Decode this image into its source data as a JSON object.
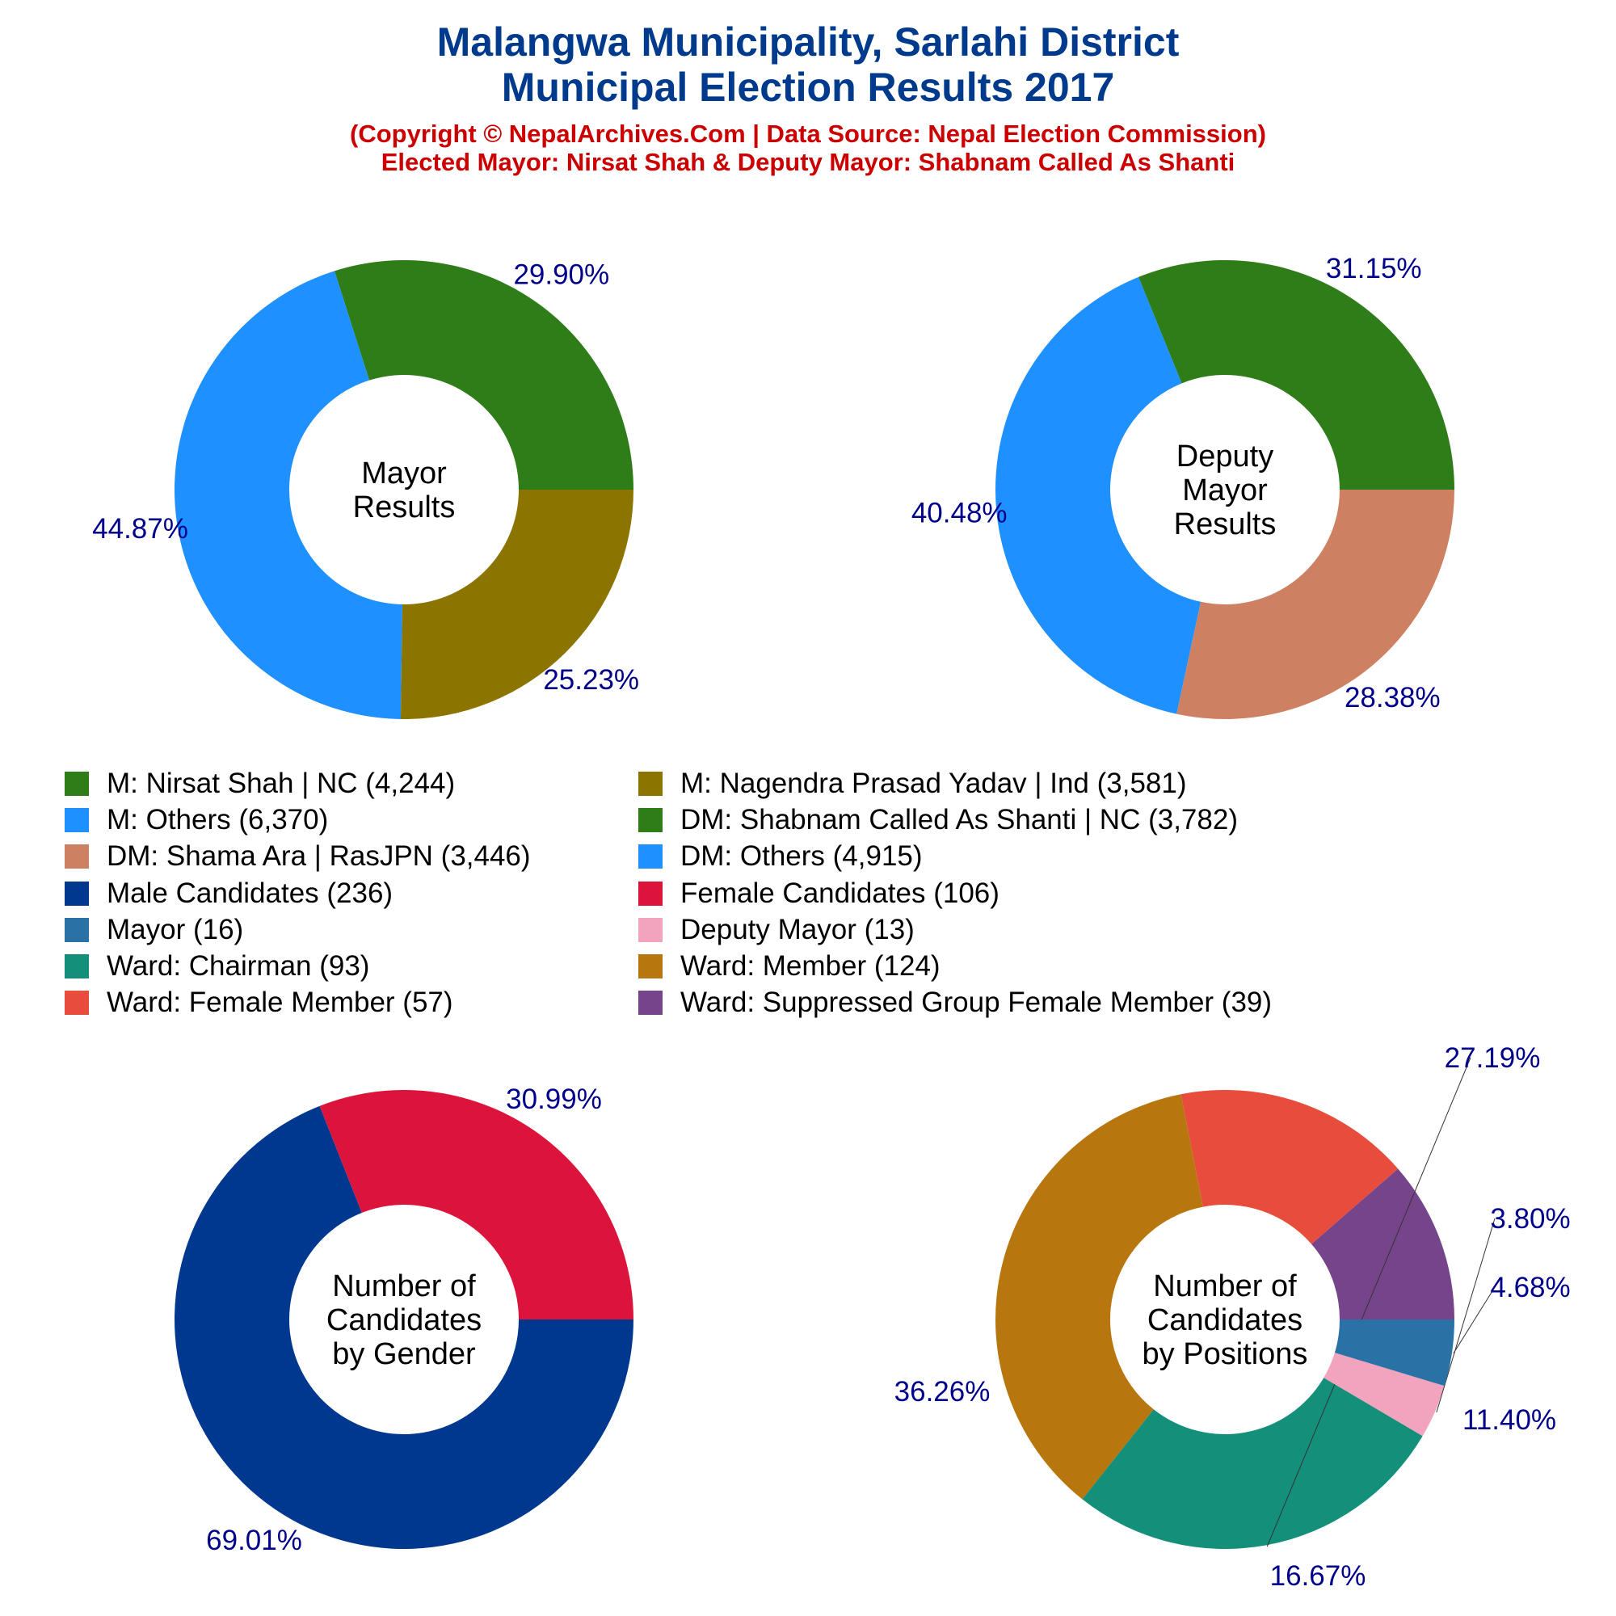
{
  "header": {
    "title_line1": "Malangwa Municipality, Sarlahi District",
    "title_line2": "Municipal Election Results 2017",
    "subtitle_line1": "(Copyright © NepalArchives.Com | Data Source: Nepal Election Commission)",
    "subtitle_line2": "Elected Mayor: Nirsat Shah & Deputy Mayor: Shabnam Called As Shanti"
  },
  "legend": [
    {
      "label": "M: Nirsat Shah | NC (4,244)",
      "color": "#2e7d19"
    },
    {
      "label": "M: Nagendra Prasad Yadav | Ind (3,581)",
      "color": "#8b7500"
    },
    {
      "label": "M: Others (6,370)",
      "color": "#1e90ff"
    },
    {
      "label": "DM: Shabnam Called As Shanti | NC (3,782)",
      "color": "#2e7d19"
    },
    {
      "label": "DM: Shama Ara | RasJPN (3,446)",
      "color": "#cd8162"
    },
    {
      "label": "DM: Others (4,915)",
      "color": "#1e90ff"
    },
    {
      "label": "Male Candidates (236)",
      "color": "#00388f"
    },
    {
      "label": "Female Candidates (106)",
      "color": "#dc143c"
    },
    {
      "label": "Mayor (16)",
      "color": "#2a72a6"
    },
    {
      "label": "Deputy Mayor (13)",
      "color": "#f2a3bd"
    },
    {
      "label": "Ward: Chairman (93)",
      "color": "#138f7a"
    },
    {
      "label": "Ward: Member (124)",
      "color": "#b8770e"
    },
    {
      "label": "Ward: Female Member (57)",
      "color": "#e74c3c"
    },
    {
      "label": "Ward: Suppressed Group Female Member (39)",
      "color": "#76448a"
    }
  ],
  "chart_data": [
    {
      "type": "pie",
      "center_label": [
        "Mayor",
        "Results"
      ],
      "slices": [
        {
          "label": "M: Nirsat Shah | NC",
          "value": 4244,
          "percent_label": "29.90%",
          "color": "#2e7d19"
        },
        {
          "label": "M: Others",
          "value": 6370,
          "percent_label": "44.87%",
          "color": "#1e90ff"
        },
        {
          "label": "M: Nagendra Prasad Yadav | Ind",
          "value": 3581,
          "percent_label": "25.23%",
          "color": "#8b7500"
        }
      ]
    },
    {
      "type": "pie",
      "center_label": [
        "Deputy",
        "Mayor",
        "Results"
      ],
      "slices": [
        {
          "label": "DM: Shabnam Called As Shanti | NC",
          "value": 3782,
          "percent_label": "31.15%",
          "color": "#2e7d19"
        },
        {
          "label": "DM: Others",
          "value": 4915,
          "percent_label": "40.48%",
          "color": "#1e90ff"
        },
        {
          "label": "DM: Shama Ara | RasJPN",
          "value": 3446,
          "percent_label": "28.38%",
          "color": "#cd8162"
        }
      ]
    },
    {
      "type": "pie",
      "center_label": [
        "Number of",
        "Candidates",
        "by Gender"
      ],
      "slices": [
        {
          "label": "Female Candidates",
          "value": 106,
          "percent_label": "30.99%",
          "color": "#dc143c"
        },
        {
          "label": "Male Candidates",
          "value": 236,
          "percent_label": "69.01%",
          "color": "#00388f"
        }
      ]
    },
    {
      "type": "pie",
      "center_label": [
        "Number of",
        "Candidates",
        "by Positions"
      ],
      "slices": [
        {
          "label": "Ward: Suppressed Group Female Member",
          "value": 39,
          "percent_label": "11.40%",
          "color": "#76448a"
        },
        {
          "label": "Ward: Female Member",
          "value": 57,
          "percent_label": "16.67%",
          "color": "#e74c3c"
        },
        {
          "label": "Ward: Member",
          "value": 124,
          "percent_label": "36.26%",
          "color": "#b8770e"
        },
        {
          "label": "Ward: Chairman",
          "value": 93,
          "percent_label": "27.19%",
          "color": "#138f7a"
        },
        {
          "label": "Deputy Mayor",
          "value": 13,
          "percent_label": "3.80%",
          "color": "#f2a3bd"
        },
        {
          "label": "Mayor",
          "value": 16,
          "percent_label": "4.68%",
          "color": "#2a72a6"
        }
      ]
    }
  ]
}
